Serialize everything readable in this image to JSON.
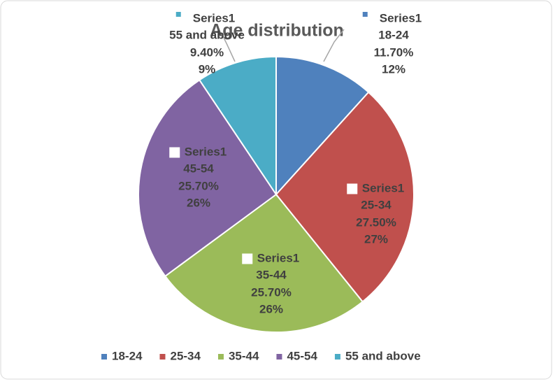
{
  "chart_data": {
    "type": "pie",
    "title": "Age distribution",
    "series_name": "Series1",
    "categories": [
      "18-24",
      "25-34",
      "35-44",
      "45-54",
      "55 and above"
    ],
    "values": [
      11.7,
      27.5,
      25.7,
      25.7,
      9.4
    ],
    "value_labels": [
      "11.70%",
      "27.50%",
      "25.70%",
      "25.70%",
      "9.40%"
    ],
    "percent_labels": [
      "12%",
      "27%",
      "26%",
      "26%",
      "9%"
    ],
    "colors": [
      "#4f81bd",
      "#c0504d",
      "#9bbb59",
      "#8064a2",
      "#4bacc6"
    ],
    "legend": "bottom"
  }
}
